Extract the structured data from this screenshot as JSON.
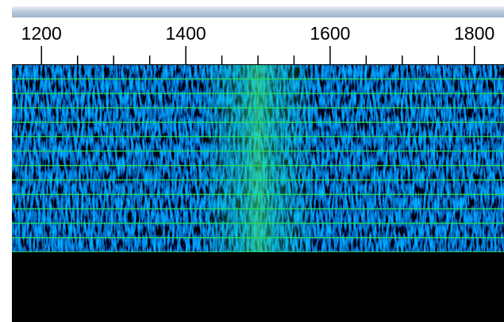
{
  "frequency_axis": {
    "xlim": [
      1159,
      1841
    ],
    "major_ticks": [
      1200,
      1400,
      1600,
      1800
    ],
    "minor_ticks": [
      1250,
      1300,
      1350,
      1450,
      1500,
      1550,
      1650,
      1700,
      1750
    ]
  }
}
